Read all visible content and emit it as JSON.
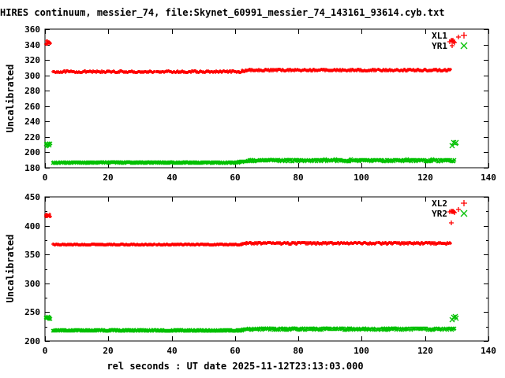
{
  "title": "HIRES continuum, messier_74, file:Skynet_60991_messier_74_143161_93614.cyb.txt",
  "xlabel": "rel seconds : UT date 2025-11-12T23:13:03.000",
  "colors": {
    "red": "#ff0000",
    "green": "#00c000",
    "axis": "#000000",
    "background": "#ffffff"
  },
  "chart_data": [
    {
      "type": "scatter",
      "ylabel": "Uncalibrated",
      "xlim": [
        0,
        140
      ],
      "xtick_step": 20,
      "ylim": [
        180,
        360
      ],
      "ytick_step": 20,
      "yminor_step": 0,
      "grid": false,
      "legend_position": "top-right",
      "series": [
        {
          "name": "XL1",
          "marker": "plus",
          "color_key": "red",
          "segments": [
            {
              "x0": 0.2,
              "x1": 1.7,
              "y0": 342.5,
              "y1": 342.5,
              "noise": 2.2,
              "step": 0.12
            },
            {
              "x0": 2.5,
              "x1": 61,
              "y0": 304.5,
              "y1": 304.5,
              "noise": 1.0,
              "step": 0.25
            },
            {
              "x0": 61,
              "x1": 65,
              "y0": 304.5,
              "y1": 307.3,
              "noise": 1.0,
              "step": 0.2
            },
            {
              "x0": 65,
              "x1": 128.2,
              "y0": 306.8,
              "y1": 306.8,
              "noise": 1.3,
              "step": 0.25
            }
          ],
          "outliers": [
            [
              127.9,
              344
            ],
            [
              128.2,
              345.5
            ],
            [
              128.5,
              344.5
            ],
            [
              128.8,
              346
            ],
            [
              129.1,
              344
            ],
            [
              129.4,
              343
            ],
            [
              130.6,
              350
            ],
            [
              128.6,
              338.5
            ]
          ]
        },
        {
          "name": "YR1",
          "marker": "cross",
          "color_key": "green",
          "segments": [
            {
              "x0": 0.2,
              "x1": 1.7,
              "y0": 210,
              "y1": 210,
              "noise": 2.0,
              "step": 0.12
            },
            {
              "x0": 2.5,
              "x1": 61,
              "y0": 186.8,
              "y1": 186.8,
              "noise": 0.8,
              "step": 0.25
            },
            {
              "x0": 61,
              "x1": 65,
              "y0": 186.8,
              "y1": 189.8,
              "noise": 0.9,
              "step": 0.2
            },
            {
              "x0": 65,
              "x1": 129.3,
              "y0": 189.5,
              "y1": 189.5,
              "noise": 1.3,
              "step": 0.25
            }
          ],
          "outliers": [
            [
              128.6,
              208.5
            ],
            [
              129.1,
              212.5
            ],
            [
              129.5,
              211.5
            ],
            [
              129.9,
              213
            ]
          ]
        }
      ]
    },
    {
      "type": "scatter",
      "ylabel": "Uncalibrated",
      "xlim": [
        0,
        140
      ],
      "xtick_step": 20,
      "ylim": [
        200,
        450
      ],
      "ytick_step": 50,
      "yminor_step": 25,
      "grid": false,
      "legend_position": "top-right",
      "series": [
        {
          "name": "XL2",
          "marker": "plus",
          "color_key": "red",
          "segments": [
            {
              "x0": 0.2,
              "x1": 1.7,
              "y0": 418,
              "y1": 418,
              "noise": 2.2,
              "step": 0.12
            },
            {
              "x0": 2.5,
              "x1": 61,
              "y0": 367.3,
              "y1": 367.3,
              "noise": 1.3,
              "step": 0.25
            },
            {
              "x0": 61,
              "x1": 65,
              "y0": 367.3,
              "y1": 370.3,
              "noise": 1.3,
              "step": 0.2
            },
            {
              "x0": 65,
              "x1": 128.2,
              "y0": 369.8,
              "y1": 369.8,
              "noise": 1.6,
              "step": 0.25
            }
          ],
          "outliers": [
            [
              127.9,
              424
            ],
            [
              128.2,
              425.5
            ],
            [
              128.5,
              424.5
            ],
            [
              128.8,
              426
            ],
            [
              129.1,
              424
            ],
            [
              129.4,
              423
            ],
            [
              130.6,
              428
            ],
            [
              128.3,
              405
            ]
          ]
        },
        {
          "name": "YR2",
          "marker": "cross",
          "color_key": "green",
          "segments": [
            {
              "x0": 0.2,
              "x1": 1.7,
              "y0": 240,
              "y1": 240,
              "noise": 2.2,
              "step": 0.12
            },
            {
              "x0": 2.5,
              "x1": 61,
              "y0": 218.3,
              "y1": 218.3,
              "noise": 1.0,
              "step": 0.25
            },
            {
              "x0": 61,
              "x1": 65,
              "y0": 218.3,
              "y1": 221,
              "noise": 1.0,
              "step": 0.2
            },
            {
              "x0": 65,
              "x1": 129.3,
              "y0": 220.8,
              "y1": 220.8,
              "noise": 1.6,
              "step": 0.25
            }
          ],
          "outliers": [
            [
              128.6,
              237.5
            ],
            [
              129.1,
              241.5
            ],
            [
              129.5,
              242.5
            ],
            [
              129.9,
              240
            ]
          ]
        }
      ]
    }
  ]
}
